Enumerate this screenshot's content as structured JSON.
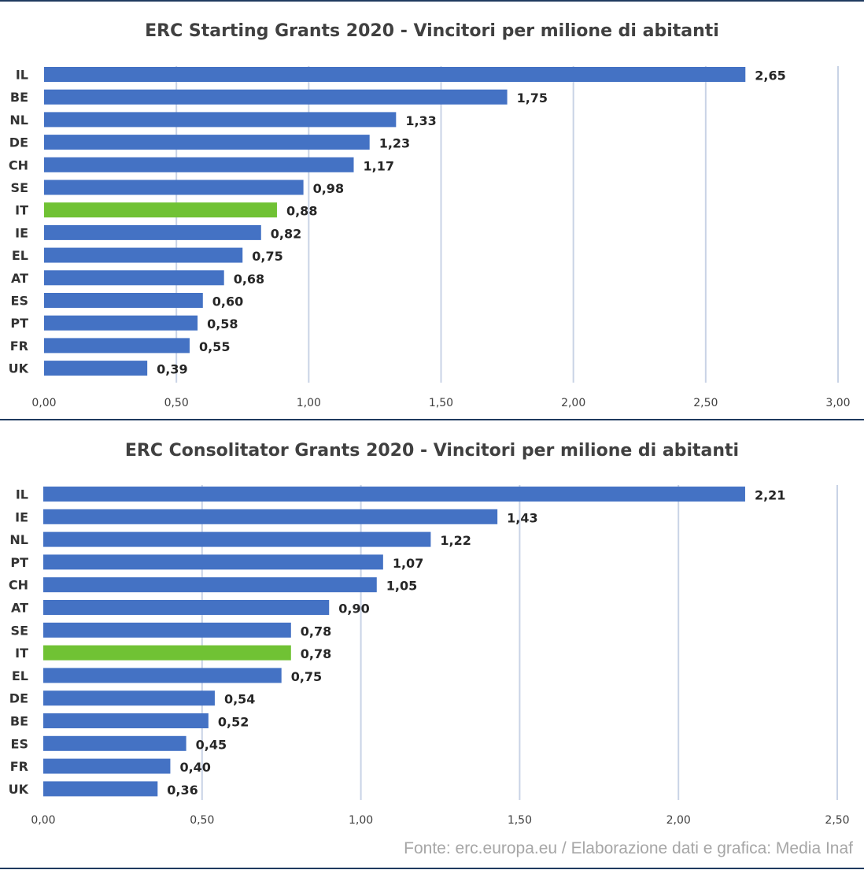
{
  "colors": {
    "bar": "#4472c4",
    "highlight": "#70c234",
    "grid": "#c9d3e6"
  },
  "source": "Fonte: erc.europa.eu / Elaborazione dati e grafica: Media Inaf",
  "chart_data": [
    {
      "type": "bar",
      "orientation": "horizontal",
      "title": "ERC Starting Grants 2020 - Vincitori per milione di abitanti",
      "categories": [
        "IL",
        "BE",
        "NL",
        "DE",
        "CH",
        "SE",
        "IT",
        "IE",
        "EL",
        "AT",
        "ES",
        "PT",
        "FR",
        "UK"
      ],
      "values": [
        2.65,
        1.75,
        1.33,
        1.23,
        1.17,
        0.98,
        0.88,
        0.82,
        0.75,
        0.68,
        0.6,
        0.58,
        0.55,
        0.39
      ],
      "value_labels": [
        "2,65",
        "1,75",
        "1,33",
        "1,23",
        "1,17",
        "0,98",
        "0,88",
        "0,82",
        "0,75",
        "0,68",
        "0,60",
        "0,58",
        "0,55",
        "0,39"
      ],
      "highlight": "IT",
      "xlim": [
        0,
        3
      ],
      "xticks": [
        0,
        0.5,
        1,
        1.5,
        2,
        2.5,
        3
      ],
      "xtick_labels": [
        "0,00",
        "0,50",
        "1,00",
        "1,50",
        "2,00",
        "2,50",
        "3,00"
      ],
      "grid": true,
      "legend": "none",
      "xlabel": "",
      "ylabel": ""
    },
    {
      "type": "bar",
      "orientation": "horizontal",
      "title": "ERC Consolitator Grants 2020 - Vincitori per milione di abitanti",
      "categories": [
        "IL",
        "IE",
        "NL",
        "PT",
        "CH",
        "AT",
        "SE",
        "IT",
        "EL",
        "DE",
        "BE",
        "ES",
        "FR",
        "UK"
      ],
      "values": [
        2.21,
        1.43,
        1.22,
        1.07,
        1.05,
        0.9,
        0.78,
        0.78,
        0.75,
        0.54,
        0.52,
        0.45,
        0.4,
        0.36
      ],
      "value_labels": [
        "2,21",
        "1,43",
        "1,22",
        "1,07",
        "1,05",
        "0,90",
        "0,78",
        "0,78",
        "0,75",
        "0,54",
        "0,52",
        "0,45",
        "0,40",
        "0,36"
      ],
      "highlight": "IT",
      "xlim": [
        0,
        2.5
      ],
      "xticks": [
        0,
        0.5,
        1,
        1.5,
        2,
        2.5
      ],
      "xtick_labels": [
        "0,00",
        "0,50",
        "1,00",
        "1,50",
        "2,00",
        "2,50"
      ],
      "grid": true,
      "legend": "none",
      "xlabel": "",
      "ylabel": ""
    }
  ]
}
